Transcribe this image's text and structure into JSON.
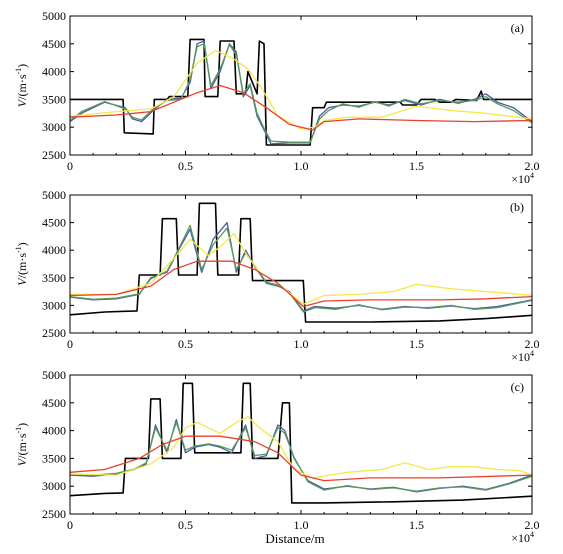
{
  "chart_data": [
    {
      "type": "line",
      "panel_label": "(a)",
      "ylabel_main": "V",
      "ylabel_unit": "/(m·s",
      "ylabel_sup": "-1",
      "ylabel_close": ")",
      "xlabel": "",
      "xlim": [
        0,
        20000
      ],
      "ylim": [
        2500,
        5000
      ],
      "xticks": [
        0,
        5000,
        10000,
        15000,
        20000
      ],
      "xtick_labels": [
        "0",
        "0.5",
        "1.0",
        "1.5",
        "2.0"
      ],
      "yticks": [
        2500,
        3000,
        3500,
        4000,
        4500,
        5000
      ],
      "ytick_labels": [
        "2500",
        "3000",
        "3500",
        "4000",
        "4500",
        "5000"
      ],
      "x_multiplier_base": "×10",
      "x_multiplier_exp": "4",
      "grid": false,
      "series": [
        {
          "color": "#000000",
          "x": [
            0,
            2300,
            2350,
            3600,
            3650,
            4200,
            4300,
            5100,
            5200,
            5800,
            5850,
            6400,
            6500,
            7100,
            7200,
            7600,
            7700,
            8100,
            8200,
            8400,
            8500,
            10400,
            10500,
            11000,
            11100,
            14300,
            14400,
            15000,
            15200,
            15800,
            16000,
            16500,
            16700,
            17600,
            17800,
            17900,
            18100,
            19100,
            19200,
            20000
          ],
          "y": [
            3500,
            3500,
            2900,
            2880,
            3500,
            3500,
            3550,
            3550,
            4580,
            4580,
            3550,
            3550,
            4550,
            4550,
            3600,
            3600,
            4000,
            3600,
            4550,
            4500,
            2680,
            2680,
            3350,
            3350,
            3450,
            3450,
            3400,
            3400,
            3500,
            3500,
            3450,
            3450,
            3500,
            3480,
            3650,
            3500,
            3500,
            3500,
            3500,
            3500
          ]
        },
        {
          "color": "#4a5ba8",
          "x": [
            0,
            500,
            1500,
            2400,
            2700,
            3100,
            3600,
            4200,
            4800,
            5200,
            5500,
            5800,
            6100,
            6500,
            6900,
            7200,
            7500,
            7800,
            8100,
            8400,
            8700,
            9500,
            10400,
            10800,
            11200,
            11800,
            12500,
            13200,
            13800,
            14500,
            15200,
            16000,
            16800,
            17500,
            18000,
            18500,
            19200,
            20000
          ],
          "y": [
            3100,
            3250,
            3450,
            3350,
            3150,
            3100,
            3300,
            3500,
            3520,
            3800,
            4500,
            4550,
            3700,
            4000,
            4500,
            4350,
            3550,
            3750,
            3200,
            2950,
            2700,
            2720,
            2720,
            3200,
            3350,
            3400,
            3380,
            3450,
            3400,
            3480,
            3400,
            3500,
            3430,
            3500,
            3600,
            3450,
            3350,
            3100
          ]
        },
        {
          "color": "#5a9a58",
          "x": [
            0,
            500,
            1500,
            2400,
            2700,
            3100,
            3600,
            4200,
            4800,
            5200,
            5500,
            5800,
            6100,
            6500,
            6900,
            7200,
            7500,
            7800,
            8100,
            8400,
            8700,
            9500,
            10400,
            10800,
            11200,
            11800,
            12500,
            13200,
            13800,
            14500,
            15200,
            16000,
            16800,
            17500,
            18000,
            18500,
            19200,
            20000
          ],
          "y": [
            3120,
            3280,
            3460,
            3330,
            3180,
            3130,
            3330,
            3480,
            3500,
            3850,
            4450,
            4500,
            3750,
            4050,
            4480,
            4300,
            3600,
            3780,
            3250,
            2980,
            2750,
            2730,
            2730,
            3150,
            3300,
            3420,
            3360,
            3460,
            3380,
            3500,
            3420,
            3480,
            3450,
            3480,
            3550,
            3420,
            3300,
            3080
          ]
        },
        {
          "color": "#f4e84a",
          "x": [
            0,
            2000,
            3500,
            4500,
            5500,
            6300,
            7000,
            7700,
            8300,
            9000,
            10000,
            10600,
            11000,
            12000,
            13500,
            15000,
            16500,
            18000,
            19000,
            20000
          ],
          "y": [
            3200,
            3280,
            3330,
            3550,
            4150,
            4380,
            4250,
            4050,
            3700,
            3200,
            2970,
            3000,
            3120,
            3180,
            3180,
            3380,
            3300,
            3250,
            3200,
            3150
          ]
        },
        {
          "color": "#e8402c",
          "x": [
            0,
            2000,
            3500,
            4500,
            5500,
            6500,
            7500,
            8500,
            9500,
            10500,
            11000,
            12500,
            15000,
            17500,
            20000
          ],
          "y": [
            3180,
            3220,
            3280,
            3450,
            3620,
            3750,
            3620,
            3350,
            3050,
            2950,
            3100,
            3150,
            3120,
            3100,
            3120
          ]
        }
      ]
    },
    {
      "type": "line",
      "panel_label": "(b)",
      "ylabel_main": "V",
      "ylabel_unit": "/(m·s",
      "ylabel_sup": "-1",
      "ylabel_close": ")",
      "xlabel": "",
      "xlim": [
        0,
        20000
      ],
      "ylim": [
        2500,
        5000
      ],
      "xticks": [
        0,
        5000,
        10000,
        15000,
        20000
      ],
      "xtick_labels": [
        "0",
        "0.5",
        "1.0",
        "1.5",
        "2.0"
      ],
      "yticks": [
        2500,
        3000,
        3500,
        4000,
        4500,
        5000
      ],
      "ytick_labels": [
        "2500",
        "3000",
        "3500",
        "4000",
        "4500",
        "5000"
      ],
      "x_multiplier_base": "×10",
      "x_multiplier_exp": "4",
      "grid": false,
      "series": [
        {
          "color": "#000000",
          "x": [
            0,
            1500,
            2900,
            3000,
            3900,
            4000,
            4600,
            4700,
            5500,
            5600,
            6300,
            6400,
            7300,
            7400,
            7800,
            7900,
            10100,
            10200,
            13000,
            16000,
            18000,
            20000
          ],
          "y": [
            2830,
            2880,
            2900,
            3550,
            3550,
            4570,
            4570,
            3550,
            3550,
            4850,
            4850,
            3550,
            3550,
            4570,
            4570,
            3450,
            3450,
            2700,
            2700,
            2720,
            2760,
            2820
          ]
        },
        {
          "color": "#4a5ba8",
          "x": [
            0,
            1000,
            2000,
            3000,
            3500,
            4200,
            4700,
            5200,
            5700,
            6200,
            6800,
            7200,
            7600,
            8000,
            8500,
            9000,
            9500,
            10100,
            10600,
            11500,
            12500,
            13500,
            14500,
            15500,
            16500,
            17500,
            18500,
            20000
          ],
          "y": [
            3150,
            3100,
            3120,
            3200,
            3500,
            3600,
            4000,
            4380,
            3600,
            4200,
            4500,
            3600,
            4000,
            3700,
            3400,
            3350,
            3250,
            2900,
            2980,
            2950,
            3000,
            2930,
            2980,
            2950,
            2990,
            2940,
            2980,
            3100
          ]
        },
        {
          "color": "#5a9a58",
          "x": [
            0,
            1000,
            2000,
            3000,
            3500,
            4200,
            4700,
            5200,
            5700,
            6200,
            6800,
            7200,
            7600,
            8000,
            8500,
            9000,
            9500,
            10100,
            10600,
            11500,
            12500,
            13500,
            14500,
            15500,
            16500,
            17500,
            18500,
            20000
          ],
          "y": [
            3160,
            3110,
            3130,
            3210,
            3480,
            3620,
            4020,
            4450,
            3650,
            4100,
            4400,
            3650,
            3950,
            3720,
            3420,
            3370,
            3230,
            2880,
            2960,
            2930,
            3010,
            2920,
            2970,
            2960,
            3000,
            2930,
            2960,
            3090
          ]
        },
        {
          "color": "#f4e84a",
          "x": [
            0,
            2000,
            3500,
            4500,
            5200,
            6000,
            6600,
            7100,
            7600,
            8200,
            9000,
            10100,
            11000,
            12500,
            14000,
            15000,
            16500,
            18000,
            19000,
            20000
          ],
          "y": [
            3200,
            3200,
            3400,
            3850,
            4200,
            3900,
            4100,
            4300,
            3950,
            3600,
            3400,
            3020,
            3180,
            3200,
            3250,
            3380,
            3300,
            3250,
            3220,
            3180
          ]
        },
        {
          "color": "#e8402c",
          "x": [
            0,
            2000,
            3500,
            4500,
            5500,
            7000,
            8000,
            9000,
            10100,
            11000,
            13000,
            16000,
            18000,
            20000
          ],
          "y": [
            3180,
            3200,
            3350,
            3650,
            3800,
            3800,
            3650,
            3400,
            2980,
            3080,
            3100,
            3100,
            3120,
            3160
          ]
        }
      ]
    },
    {
      "type": "line",
      "panel_label": "(c)",
      "ylabel_main": "V",
      "ylabel_unit": "/(m·s",
      "ylabel_sup": "-1",
      "ylabel_close": ")",
      "xlabel": "Distance/m",
      "xlim": [
        0,
        20000
      ],
      "ylim": [
        2500,
        5000
      ],
      "xticks": [
        0,
        5000,
        10000,
        15000,
        20000
      ],
      "xtick_labels": [
        "0",
        "0.5",
        "1.0",
        "1.5",
        "2.0"
      ],
      "yticks": [
        2500,
        3000,
        3500,
        4000,
        4500,
        5000
      ],
      "ytick_labels": [
        "2500",
        "3000",
        "3500",
        "4000",
        "4500",
        "5000"
      ],
      "x_multiplier_base": "×10",
      "x_multiplier_exp": "4",
      "grid": false,
      "series": [
        {
          "color": "#000000",
          "x": [
            0,
            1500,
            2300,
            2400,
            3400,
            3500,
            3900,
            4000,
            4800,
            4900,
            5300,
            5400,
            7400,
            7500,
            7800,
            7900,
            9000,
            9200,
            9500,
            9600,
            11000,
            14000,
            17000,
            20000
          ],
          "y": [
            2830,
            2870,
            2880,
            3500,
            3500,
            4570,
            4570,
            3500,
            3500,
            4850,
            4850,
            3600,
            3600,
            4850,
            4850,
            3500,
            3500,
            4500,
            4500,
            2700,
            2700,
            2720,
            2750,
            2820
          ]
        },
        {
          "color": "#4a5ba8",
          "x": [
            0,
            1000,
            2000,
            2800,
            3300,
            3700,
            4200,
            4600,
            5000,
            5400,
            6000,
            6500,
            7000,
            7600,
            8000,
            8500,
            9000,
            9300,
            9700,
            10300,
            11000,
            12000,
            13000,
            14000,
            15000,
            16000,
            17000,
            18000,
            19000,
            20000
          ],
          "y": [
            3200,
            3180,
            3220,
            3300,
            3400,
            4100,
            3600,
            4200,
            3600,
            3700,
            3750,
            3700,
            3600,
            4100,
            3500,
            3550,
            4100,
            4000,
            3500,
            3100,
            2950,
            3000,
            2950,
            2980,
            2900,
            2960,
            3000,
            2940,
            3050,
            3200
          ]
        },
        {
          "color": "#5a9a58",
          "x": [
            0,
            1000,
            2000,
            2800,
            3300,
            3700,
            4200,
            4600,
            5000,
            5400,
            6000,
            6500,
            7000,
            7600,
            8000,
            8500,
            9000,
            9300,
            9700,
            10300,
            11000,
            12000,
            13000,
            14000,
            15000,
            16000,
            17000,
            18000,
            19000,
            20000
          ],
          "y": [
            3220,
            3200,
            3230,
            3310,
            3420,
            4050,
            3650,
            4150,
            3650,
            3720,
            3760,
            3720,
            3650,
            4050,
            3550,
            3580,
            4050,
            3950,
            3520,
            3080,
            2930,
            3010,
            2940,
            2970,
            2910,
            2970,
            2990,
            2930,
            3040,
            3180
          ]
        },
        {
          "color": "#f4e84a",
          "x": [
            0,
            2000,
            3500,
            4500,
            5000,
            5500,
            6500,
            7200,
            7700,
            8200,
            9000,
            9700,
            10500,
            12000,
            13500,
            14500,
            15500,
            16500,
            17500,
            18500,
            19500,
            20000
          ],
          "y": [
            3220,
            3200,
            3400,
            3700,
            4050,
            4150,
            3950,
            4150,
            4250,
            4050,
            3800,
            3300,
            3150,
            3250,
            3300,
            3420,
            3300,
            3350,
            3350,
            3300,
            3280,
            3200
          ]
        },
        {
          "color": "#e8402c",
          "x": [
            0,
            1500,
            3000,
            4000,
            5000,
            6500,
            8000,
            9000,
            10000,
            11000,
            13000,
            16000,
            20000
          ],
          "y": [
            3250,
            3300,
            3500,
            3750,
            3900,
            3900,
            3800,
            3600,
            3200,
            3100,
            3150,
            3150,
            3200
          ]
        }
      ]
    }
  ]
}
